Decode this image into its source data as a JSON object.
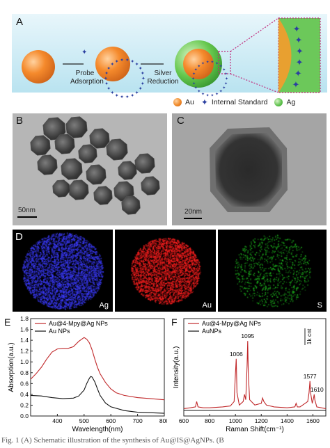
{
  "panel_a": {
    "letter": "A",
    "step1_line1": "Probe",
    "step1_line2": "Adsorption",
    "step2_line1": "Silver",
    "step2_line2": "Reduction",
    "legend": [
      {
        "label": "Au",
        "color": "#f08a2a"
      },
      {
        "label": "Internal Standard",
        "color": "#2b3fa0"
      },
      {
        "label": "Ag",
        "color": "#5cc04a"
      }
    ]
  },
  "panel_b": {
    "letter": "B",
    "scale_bar": "50nm"
  },
  "panel_c": {
    "letter": "C",
    "scale_bar": "20nm"
  },
  "panel_d": {
    "letter": "D",
    "maps": [
      {
        "label": "Ag",
        "color": "#3c3cff"
      },
      {
        "label": "Au",
        "color": "#ff2020"
      },
      {
        "label": "S",
        "color": "#20c020"
      }
    ]
  },
  "caption": "Fig. 1  (A) Schematic illustration of the synthesis of Au@IS@AgNPs. (B",
  "chart_data": [
    {
      "panel": "E",
      "type": "line",
      "xlabel": "Wavelength(nm)",
      "ylabel": "Absorption(a.u.)",
      "xlim": [
        300,
        800
      ],
      "ylim": [
        0,
        1.8
      ],
      "x_ticks": [
        "400",
        "500",
        "600",
        "700",
        "800"
      ],
      "y_ticks": [
        "0.0",
        "0.2",
        "0.4",
        "0.6",
        "0.8",
        "1.0",
        "1.2",
        "1.4",
        "1.6",
        "1.8"
      ],
      "legend_position": "top-left",
      "series": [
        {
          "name": "Au@4-Mpy@Ag NPs",
          "color": "#c0282a",
          "x": [
            300,
            320,
            340,
            360,
            380,
            400,
            420,
            440,
            460,
            480,
            500,
            510,
            520,
            530,
            540,
            550,
            560,
            580,
            600,
            620,
            650,
            700,
            750,
            800
          ],
          "y": [
            0.68,
            0.78,
            0.9,
            1.05,
            1.18,
            1.24,
            1.25,
            1.25,
            1.28,
            1.38,
            1.45,
            1.42,
            1.35,
            1.22,
            1.05,
            0.9,
            0.78,
            0.62,
            0.5,
            0.43,
            0.38,
            0.34,
            0.32,
            0.3
          ]
        },
        {
          "name": "Au NPs",
          "color": "#111111",
          "x": [
            300,
            340,
            380,
            420,
            460,
            480,
            500,
            510,
            520,
            525,
            530,
            540,
            550,
            560,
            580,
            600,
            650,
            700,
            750,
            800
          ],
          "y": [
            0.38,
            0.37,
            0.34,
            0.32,
            0.33,
            0.37,
            0.48,
            0.6,
            0.7,
            0.73,
            0.72,
            0.63,
            0.5,
            0.38,
            0.24,
            0.17,
            0.1,
            0.07,
            0.06,
            0.05
          ]
        }
      ]
    },
    {
      "panel": "F",
      "type": "line",
      "xlabel": "Raman Shift(cm⁻¹)",
      "ylabel": "Intensity(a.u.)",
      "xlim": [
        600,
        1700
      ],
      "x_ticks": [
        "600",
        "800",
        "1000",
        "1200",
        "1400",
        "1600"
      ],
      "legend_position": "top-left",
      "scale_label": "1k cnt",
      "peak_labels": [
        "1006",
        "1095",
        "1577",
        "1610"
      ],
      "series": [
        {
          "name": "Au@4-Mpy@Ag NPs",
          "color": "#c0282a",
          "x": [
            600,
            650,
            690,
            700,
            710,
            750,
            800,
            900,
            960,
            990,
            1000,
            1006,
            1012,
            1030,
            1060,
            1070,
            1080,
            1090,
            1095,
            1100,
            1110,
            1150,
            1200,
            1210,
            1220,
            1240,
            1300,
            1400,
            1460,
            1470,
            1480,
            1500,
            1560,
            1570,
            1577,
            1584,
            1595,
            1605,
            1610,
            1615,
            1630,
            1700
          ],
          "y": [
            0.02,
            0.03,
            0.04,
            0.1,
            0.04,
            0.03,
            0.03,
            0.04,
            0.05,
            0.1,
            0.42,
            0.58,
            0.2,
            0.06,
            0.1,
            0.18,
            0.12,
            0.5,
            0.78,
            0.4,
            0.12,
            0.06,
            0.08,
            0.14,
            0.1,
            0.06,
            0.04,
            0.03,
            0.04,
            0.08,
            0.04,
            0.04,
            0.1,
            0.2,
            0.33,
            0.18,
            0.08,
            0.14,
            0.18,
            0.12,
            0.04,
            0.02
          ]
        },
        {
          "name": "AuNPs",
          "color": "#111111",
          "x": [
            600,
            800,
            1000,
            1200,
            1400,
            1600,
            1700
          ],
          "y": [
            0.0,
            0.0,
            0.0,
            0.0,
            0.0,
            0.0,
            0.0
          ]
        }
      ]
    }
  ]
}
